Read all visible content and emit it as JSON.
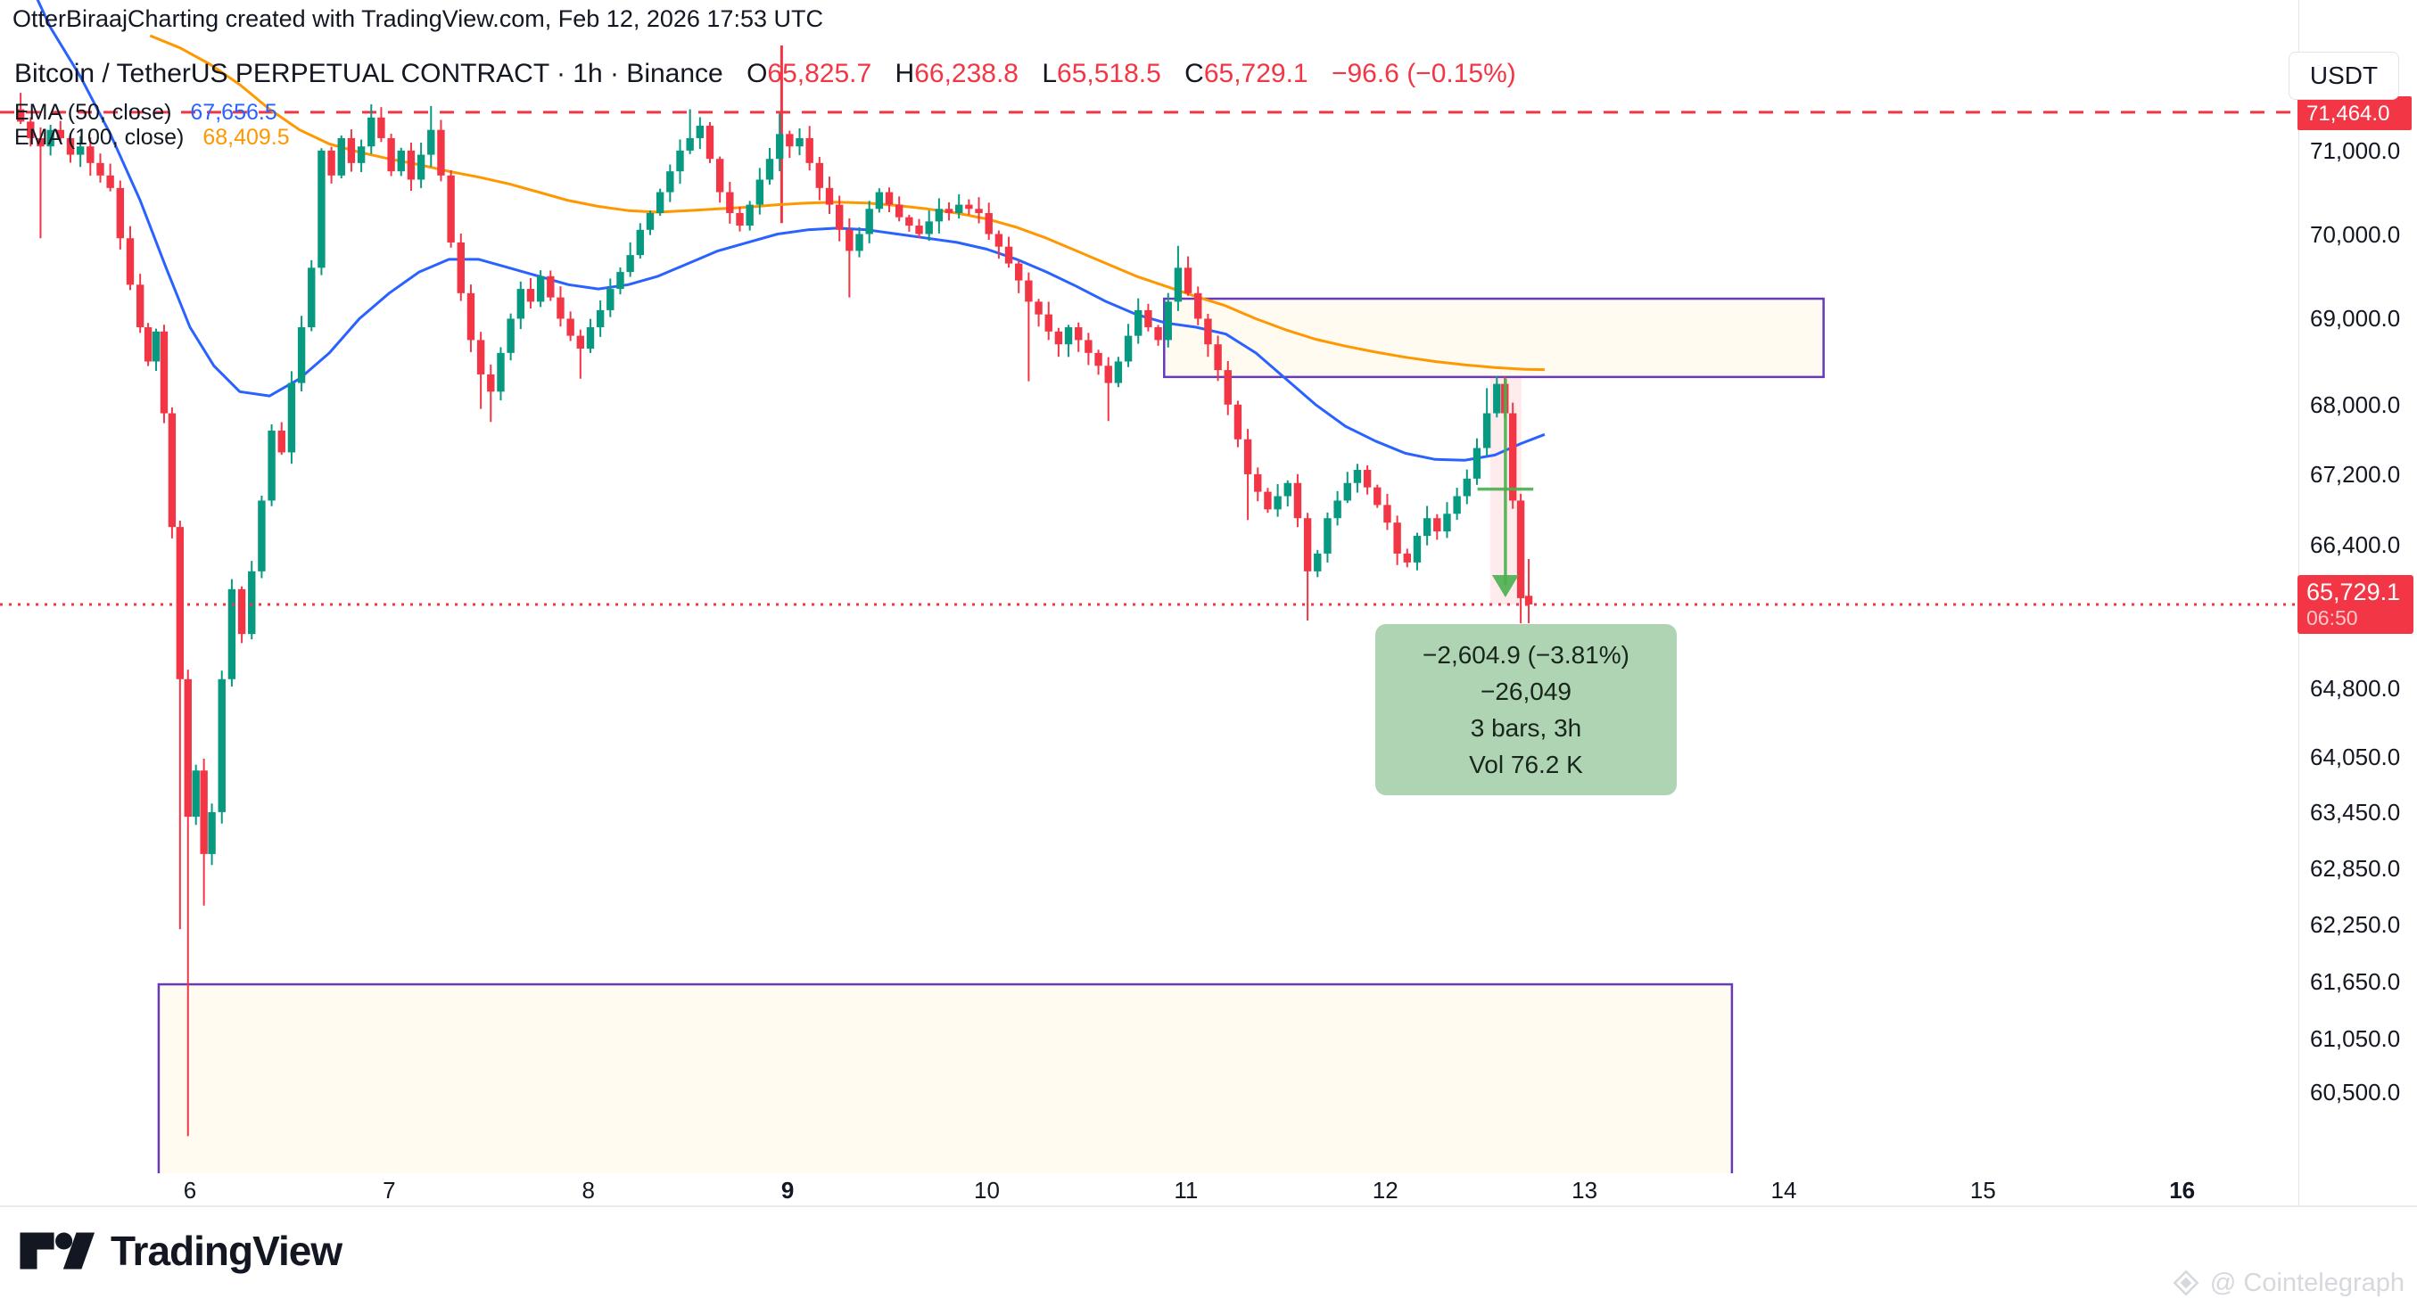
{
  "attribution": "OtterBiraajCharting created with TradingView.com, Feb 12, 2026 17:53 UTC",
  "header": {
    "symbol_line": "Bitcoin / TetherUS PERPETUAL CONTRACT · 1h · Binance",
    "ohlc": {
      "o_label": "O",
      "o": "65,825.7",
      "h_label": "H",
      "h": "66,238.8",
      "l_label": "L",
      "l": "65,518.5",
      "c_label": "C",
      "c": "65,729.1",
      "change": "−96.6 (−0.15%)"
    }
  },
  "indicators": [
    {
      "label": "EMA (50, close)",
      "value": "67,656.5",
      "color": "#2962FF"
    },
    {
      "label": "EMA (100, close)",
      "value": "68,409.5",
      "color": "#FF9800"
    }
  ],
  "axis": {
    "currency_button": "USDT",
    "upper_line_label": "71,464.0",
    "last_price_label": "65,729.1",
    "countdown": "06:50",
    "price_ticks": [
      {
        "v": 71000,
        "label": "71,000.0"
      },
      {
        "v": 70000,
        "label": "70,000.0"
      },
      {
        "v": 69000,
        "label": "69,000.0"
      },
      {
        "v": 68000,
        "label": "68,000.0"
      },
      {
        "v": 67200,
        "label": "67,200.0"
      },
      {
        "v": 66400,
        "label": "66,400.0"
      },
      {
        "v": 64800,
        "label": "64,800.0"
      },
      {
        "v": 64050,
        "label": "64,050.0"
      },
      {
        "v": 63450,
        "label": "63,450.0"
      },
      {
        "v": 62850,
        "label": "62,850.0"
      },
      {
        "v": 62250,
        "label": "62,250.0"
      },
      {
        "v": 61650,
        "label": "61,650.0"
      },
      {
        "v": 61050,
        "label": "61,050.0"
      },
      {
        "v": 60500,
        "label": "60,500.0"
      }
    ],
    "time_ticks": [
      {
        "day": 6,
        "label": "6",
        "bold": false
      },
      {
        "day": 7,
        "label": "7",
        "bold": false
      },
      {
        "day": 8,
        "label": "8",
        "bold": false
      },
      {
        "day": 9,
        "label": "9",
        "bold": true
      },
      {
        "day": 10,
        "label": "10",
        "bold": false
      },
      {
        "day": 11,
        "label": "11",
        "bold": false
      },
      {
        "day": 12,
        "label": "12",
        "bold": false
      },
      {
        "day": 13,
        "label": "13",
        "bold": false
      },
      {
        "day": 14,
        "label": "14",
        "bold": false
      },
      {
        "day": 15,
        "label": "15",
        "bold": false
      },
      {
        "day": 16,
        "label": "16",
        "bold": true
      }
    ]
  },
  "tooltip": {
    "line1": "−2,604.9 (−3.81%) −26,049",
    "line2": "3 bars, 3h",
    "line3": "Vol 76.2 K"
  },
  "footer": {
    "logo_text": "TradingView",
    "watermark": "@ Cointelegraph"
  },
  "colors": {
    "up": "#089981",
    "down": "#F23645",
    "ema50": "#2962FF",
    "ema100": "#FF9800",
    "purple": "#673AB7",
    "box_fill": "rgba(255,248,230,0.55)",
    "pink_band": "rgba(242,54,69,0.10)",
    "measure_green": "#4CAF50",
    "axis_line": "#E0E3EB"
  },
  "chart_data": {
    "type": "candlestick",
    "title": "Bitcoin / TetherUS PERPETUAL CONTRACT 1h Binance",
    "x_unit": "day of Feb 2026",
    "x_range": [
      5.1,
      16.6
    ],
    "y_scale": "log",
    "y_range_visible": [
      60000,
      72400
    ],
    "grid": "off",
    "first_open": 71500,
    "last_bar": {
      "o": 65825.7,
      "h": 66238.8,
      "l": 65518.5,
      "c": 65729.1
    },
    "levels": {
      "dashed_red": 71464.0,
      "dotted_red_last_price": 65729.1
    },
    "vertical_red_line": {
      "day": 8.97,
      "p_top": 72280,
      "p_bottom": 70130
    },
    "boxes": [
      {
        "name": "lower-demand-zone",
        "x1_day": 5.843,
        "x2_day": 13.74,
        "p_top": 61620,
        "p_bottom": 58900,
        "bottom_clipped": true
      },
      {
        "name": "upper-supply-zone",
        "x1_day": 10.89,
        "x2_day": 14.2,
        "p_top": 69235,
        "p_bottom": 68320
      }
    ],
    "measure": {
      "band_x1_day": 12.527,
      "band_x2_day": 12.684,
      "p_top": 68334,
      "p_bottom": 65729.1,
      "arrow_day": 12.603,
      "crossbar_p": 67030,
      "crossbar_half_width_days": 0.14
    },
    "candles": [
      [
        5.15,
        71350,
        71700,
        null
      ],
      [
        5.2,
        71150
      ],
      [
        5.25,
        71050,
        null,
        69950
      ],
      [
        5.3,
        71250
      ],
      [
        5.35,
        71150
      ],
      [
        5.4,
        70950
      ],
      [
        5.45,
        71050
      ],
      [
        5.5,
        70850
      ],
      [
        5.55,
        70700
      ],
      [
        5.6,
        70550
      ],
      [
        5.65,
        69950
      ],
      [
        5.7,
        69400
      ],
      [
        5.75,
        68900
      ],
      [
        5.79,
        68500
      ],
      [
        5.83,
        68850
      ],
      [
        5.87,
        67900
      ],
      [
        5.91,
        66600
      ],
      [
        5.95,
        64900,
        null,
        62200
      ],
      [
        5.99,
        63400,
        null,
        60050
      ],
      [
        6.03,
        63900
      ],
      [
        6.07,
        63000,
        null,
        62450
      ],
      [
        6.11,
        63450
      ],
      [
        6.16,
        64900
      ],
      [
        6.21,
        65900
      ],
      [
        6.26,
        65400
      ],
      [
        6.31,
        66100
      ],
      [
        6.36,
        66900
      ],
      [
        6.41,
        67700
      ],
      [
        6.46,
        67450
      ],
      [
        6.51,
        68250
      ],
      [
        6.56,
        68900
      ],
      [
        6.61,
        69600
      ],
      [
        6.66,
        71000
      ],
      [
        6.71,
        70700
      ],
      [
        6.76,
        71150
      ],
      [
        6.81,
        70850
      ],
      [
        6.86,
        71050
      ],
      [
        6.91,
        71400,
        71560,
        null
      ],
      [
        6.96,
        71150
      ],
      [
        7.01,
        70750
      ],
      [
        7.06,
        71000
      ],
      [
        7.11,
        70650
      ],
      [
        7.16,
        70950
      ],
      [
        7.21,
        71250,
        71540,
        null
      ],
      [
        7.26,
        70700
      ],
      [
        7.31,
        69900
      ],
      [
        7.36,
        69300
      ],
      [
        7.41,
        68750
      ],
      [
        7.46,
        68350,
        null,
        67950
      ],
      [
        7.51,
        68150,
        null,
        67800
      ],
      [
        7.56,
        68600
      ],
      [
        7.61,
        69000
      ],
      [
        7.66,
        69350
      ],
      [
        7.71,
        69200
      ],
      [
        7.76,
        69500
      ],
      [
        7.81,
        69250
      ],
      [
        7.86,
        69000
      ],
      [
        7.91,
        68800
      ],
      [
        7.96,
        68650,
        null,
        68300
      ],
      [
        8.01,
        68900
      ],
      [
        8.06,
        69100
      ],
      [
        8.11,
        69350
      ],
      [
        8.16,
        69550
      ],
      [
        8.21,
        69750
      ],
      [
        8.26,
        70050
      ],
      [
        8.31,
        70250
      ],
      [
        8.36,
        70500
      ],
      [
        8.41,
        70750
      ],
      [
        8.46,
        71000
      ],
      [
        8.51,
        71150,
        71500,
        null
      ],
      [
        8.56,
        71300
      ],
      [
        8.61,
        70900
      ],
      [
        8.66,
        70500
      ],
      [
        8.71,
        70250
      ],
      [
        8.76,
        70100
      ],
      [
        8.81,
        70350
      ],
      [
        8.86,
        70650
      ],
      [
        8.91,
        70900
      ],
      [
        8.96,
        71200,
        71450,
        null
      ],
      [
        9.01,
        71050
      ],
      [
        9.06,
        71150
      ],
      [
        9.11,
        70850
      ],
      [
        9.16,
        70550
      ],
      [
        9.21,
        70350
      ],
      [
        9.26,
        70050
      ],
      [
        9.31,
        69800,
        null,
        69250
      ],
      [
        9.36,
        70000
      ],
      [
        9.41,
        70300
      ],
      [
        9.46,
        70500
      ],
      [
        9.51,
        70350
      ],
      [
        9.56,
        70200
      ],
      [
        9.61,
        70100
      ],
      [
        9.66,
        70000
      ],
      [
        9.71,
        70150
      ],
      [
        9.76,
        70300
      ],
      [
        9.81,
        70250
      ],
      [
        9.86,
        70350
      ],
      [
        9.91,
        70300
      ],
      [
        9.96,
        70250
      ],
      [
        10.01,
        70000
      ],
      [
        10.06,
        69850
      ],
      [
        10.11,
        69650
      ],
      [
        10.16,
        69450
      ],
      [
        10.21,
        69200,
        null,
        68270
      ],
      [
        10.26,
        69050
      ],
      [
        10.31,
        68850
      ],
      [
        10.36,
        68700
      ],
      [
        10.41,
        68900
      ],
      [
        10.46,
        68750
      ],
      [
        10.51,
        68600
      ],
      [
        10.56,
        68450
      ],
      [
        10.61,
        68250,
        null,
        67810
      ],
      [
        10.66,
        68500
      ],
      [
        10.71,
        68800
      ],
      [
        10.76,
        69100
      ],
      [
        10.81,
        68900
      ],
      [
        10.86,
        68750
      ],
      [
        10.91,
        69200
      ],
      [
        10.96,
        69600,
        69860,
        null
      ],
      [
        11.01,
        69300
      ],
      [
        11.06,
        69000
      ],
      [
        11.11,
        68700
      ],
      [
        11.16,
        68400
      ],
      [
        11.21,
        68000
      ],
      [
        11.26,
        67600
      ],
      [
        11.31,
        67200,
        null,
        66680
      ],
      [
        11.36,
        67000
      ],
      [
        11.41,
        66800
      ],
      [
        11.46,
        66950
      ],
      [
        11.51,
        67100
      ],
      [
        11.56,
        66700
      ],
      [
        11.61,
        66100,
        null,
        65550
      ],
      [
        11.66,
        66300
      ],
      [
        11.71,
        66700
      ],
      [
        11.76,
        66900
      ],
      [
        11.81,
        67100
      ],
      [
        11.86,
        67250
      ],
      [
        11.91,
        67050
      ],
      [
        11.96,
        66850
      ],
      [
        12.01,
        66650
      ],
      [
        12.06,
        66300
      ],
      [
        12.11,
        66200
      ],
      [
        12.16,
        66500
      ],
      [
        12.21,
        66700
      ],
      [
        12.26,
        66550
      ],
      [
        12.31,
        66750
      ],
      [
        12.36,
        66950
      ],
      [
        12.41,
        67150
      ],
      [
        12.46,
        67500
      ],
      [
        12.51,
        67900,
        68190,
        null
      ],
      [
        12.56,
        68240,
        68334,
        null
      ],
      [
        12.6,
        67900
      ],
      [
        12.64,
        66900
      ],
      [
        12.68,
        65800,
        null,
        65518.5
      ],
      [
        12.72,
        65729.1,
        66238.8,
        65518.5,
        65825.7
      ]
    ],
    "ema50": [
      [
        5.15,
        73300
      ],
      [
        5.3,
        72500
      ],
      [
        5.45,
        71900
      ],
      [
        5.6,
        71200
      ],
      [
        5.75,
        70400
      ],
      [
        5.88,
        69600
      ],
      [
        6.0,
        68900
      ],
      [
        6.12,
        68450
      ],
      [
        6.25,
        68150
      ],
      [
        6.4,
        68100
      ],
      [
        6.55,
        68300
      ],
      [
        6.7,
        68600
      ],
      [
        6.85,
        69000
      ],
      [
        7.0,
        69300
      ],
      [
        7.15,
        69550
      ],
      [
        7.3,
        69700
      ],
      [
        7.45,
        69700
      ],
      [
        7.6,
        69600
      ],
      [
        7.75,
        69500
      ],
      [
        7.9,
        69400
      ],
      [
        8.05,
        69350
      ],
      [
        8.2,
        69400
      ],
      [
        8.35,
        69500
      ],
      [
        8.5,
        69650
      ],
      [
        8.65,
        69800
      ],
      [
        8.8,
        69900
      ],
      [
        8.95,
        70000
      ],
      [
        9.1,
        70050
      ],
      [
        9.25,
        70070
      ],
      [
        9.4,
        70050
      ],
      [
        9.55,
        70000
      ],
      [
        9.7,
        69950
      ],
      [
        9.85,
        69900
      ],
      [
        10.0,
        69820
      ],
      [
        10.15,
        69700
      ],
      [
        10.3,
        69550
      ],
      [
        10.45,
        69380
      ],
      [
        10.6,
        69200
      ],
      [
        10.75,
        69050
      ],
      [
        10.9,
        68950
      ],
      [
        11.05,
        68900
      ],
      [
        11.2,
        68820
      ],
      [
        11.35,
        68600
      ],
      [
        11.5,
        68300
      ],
      [
        11.65,
        68000
      ],
      [
        11.8,
        67750
      ],
      [
        11.95,
        67580
      ],
      [
        12.1,
        67440
      ],
      [
        12.25,
        67370
      ],
      [
        12.4,
        67360
      ],
      [
        12.55,
        67420
      ],
      [
        12.68,
        67550
      ],
      [
        12.8,
        67656
      ]
    ],
    "ema100": [
      [
        5.8,
        72400
      ],
      [
        5.95,
        72250
      ],
      [
        6.1,
        72050
      ],
      [
        6.25,
        71800
      ],
      [
        6.4,
        71500
      ],
      [
        6.55,
        71250
      ],
      [
        6.7,
        71080
      ],
      [
        6.85,
        70980
      ],
      [
        7.0,
        70900
      ],
      [
        7.15,
        70830
      ],
      [
        7.3,
        70750
      ],
      [
        7.45,
        70680
      ],
      [
        7.6,
        70600
      ],
      [
        7.75,
        70500
      ],
      [
        7.9,
        70400
      ],
      [
        8.05,
        70330
      ],
      [
        8.2,
        70280
      ],
      [
        8.35,
        70260
      ],
      [
        8.5,
        70280
      ],
      [
        8.65,
        70300
      ],
      [
        8.8,
        70320
      ],
      [
        8.95,
        70350
      ],
      [
        9.1,
        70370
      ],
      [
        9.25,
        70380
      ],
      [
        9.4,
        70370
      ],
      [
        9.55,
        70340
      ],
      [
        9.7,
        70300
      ],
      [
        9.85,
        70250
      ],
      [
        10.0,
        70180
      ],
      [
        10.15,
        70080
      ],
      [
        10.3,
        69950
      ],
      [
        10.45,
        69800
      ],
      [
        10.6,
        69650
      ],
      [
        10.75,
        69500
      ],
      [
        10.9,
        69380
      ],
      [
        11.05,
        69260
      ],
      [
        11.2,
        69150
      ],
      [
        11.35,
        69000
      ],
      [
        11.5,
        68870
      ],
      [
        11.65,
        68760
      ],
      [
        11.8,
        68680
      ],
      [
        11.95,
        68610
      ],
      [
        12.1,
        68550
      ],
      [
        12.25,
        68500
      ],
      [
        12.4,
        68460
      ],
      [
        12.55,
        68430
      ],
      [
        12.7,
        68410
      ],
      [
        12.8,
        68405
      ]
    ]
  }
}
